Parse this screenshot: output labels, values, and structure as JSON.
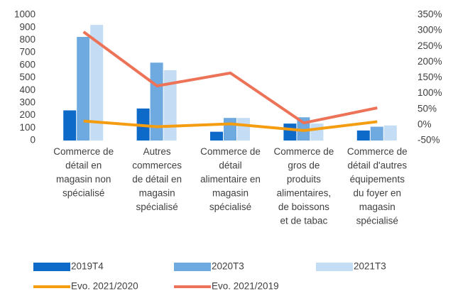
{
  "chart_data": {
    "type": "bar_line",
    "categories": [
      "Commerce de\ndétail en\nmagasin non\nspécialisé",
      "Autres\ncommerces\nde détail en\nmagasin\nspécialisé",
      "Commerce de\ndétail\nalimentaire en\nmagasin\nspécialisé",
      "Commerce de\ngros de\nproduits\nalimentaires,\nde boissons\net de tabac",
      "Commerce de\ndétail d'autres\néquipements\ndu foyer en\nmagasin\nspécialisé"
    ],
    "series": [
      {
        "name": "2019T4",
        "type": "bar",
        "color": "#0e6ac8",
        "values": [
          240,
          255,
          70,
          135,
          80
        ]
      },
      {
        "name": "2020T3",
        "type": "bar",
        "color": "#6eaae0",
        "values": [
          825,
          620,
          180,
          185,
          110
        ]
      },
      {
        "name": "2021T3",
        "type": "bar",
        "color": "#c4dcf4",
        "values": [
          920,
          560,
          180,
          135,
          120
        ]
      },
      {
        "name": "Evo. 2021/2020",
        "type": "line",
        "axis": "y2",
        "color": "#f59d10",
        "values": [
          12,
          -6,
          3,
          -18,
          10
        ]
      },
      {
        "name": "Evo. 2021/2019",
        "type": "line",
        "axis": "y2",
        "color": "#ec7357",
        "values": [
          296,
          124,
          165,
          6,
          54
        ]
      }
    ],
    "ylim": [
      0,
      1000
    ],
    "yticks": [
      0,
      100,
      200,
      300,
      400,
      500,
      600,
      700,
      800,
      900,
      1000
    ],
    "y2lim": [
      -50,
      350
    ],
    "y2ticks": [
      {
        "value": -50,
        "label": "-50%"
      },
      {
        "value": 0,
        "label": "0%"
      },
      {
        "value": 50,
        "label": "50%"
      },
      {
        "value": 100,
        "label": "100%"
      },
      {
        "value": 150,
        "label": "150%"
      },
      {
        "value": 200,
        "label": "200%"
      },
      {
        "value": 250,
        "label": "250%"
      },
      {
        "value": 300,
        "label": "300%"
      },
      {
        "value": 350,
        "label": "350%"
      }
    ],
    "legend": "bottom"
  }
}
